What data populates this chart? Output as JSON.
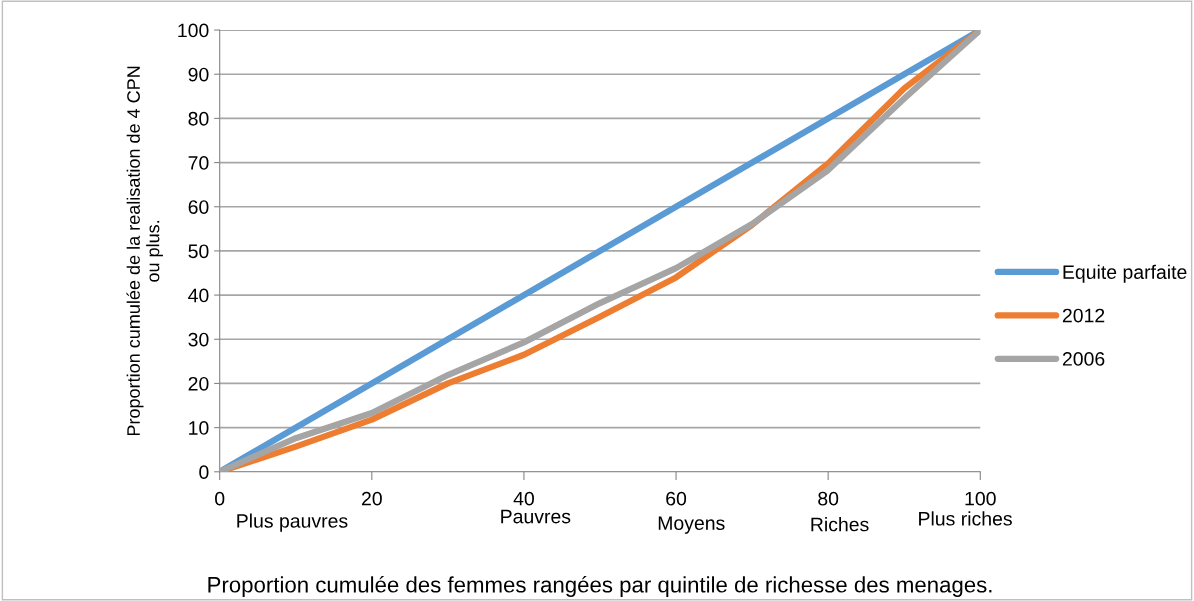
{
  "chart_data": {
    "type": "line",
    "xlabel": "Proportion cumulée des femmes rangées par quintile de richesse des menages.",
    "ylabel": "Proportion cumulée de la realisation de 4 CPN\nou plus.",
    "series": [
      {
        "name": "Equite parfaite",
        "color": "#5b9bd5",
        "x": [
          0,
          100
        ],
        "values": [
          0,
          100
        ]
      },
      {
        "name": "2012",
        "color": "#ed7d31",
        "x": [
          0,
          10,
          20,
          30,
          40,
          50,
          60,
          70,
          80,
          90,
          100
        ],
        "values": [
          0,
          5.7,
          11.8,
          20,
          26.5,
          35.1,
          44,
          55.9,
          69.8,
          86.8,
          100
        ]
      },
      {
        "name": "2006",
        "color": "#a5a5a5",
        "x": [
          0,
          10,
          20,
          30,
          40,
          50,
          60,
          70,
          80,
          90,
          100
        ],
        "values": [
          0,
          7.6,
          13.3,
          21.9,
          29.3,
          38.2,
          46.1,
          56.1,
          68.3,
          84.5,
          100
        ]
      }
    ],
    "annotations": [
      "Plus pauvres",
      "Pauvres",
      "Moyens",
      "Riches",
      "Plus riches"
    ],
    "xlim": [
      0,
      100
    ],
    "xticks": [
      0,
      20,
      40,
      60,
      80,
      100
    ],
    "ylim": [
      0,
      100
    ],
    "yticks": [
      0,
      10,
      20,
      30,
      40,
      50,
      60,
      70,
      80,
      90,
      100
    ],
    "grid": "y",
    "legend": "right",
    "marker": "none",
    "line_style": "solid"
  }
}
